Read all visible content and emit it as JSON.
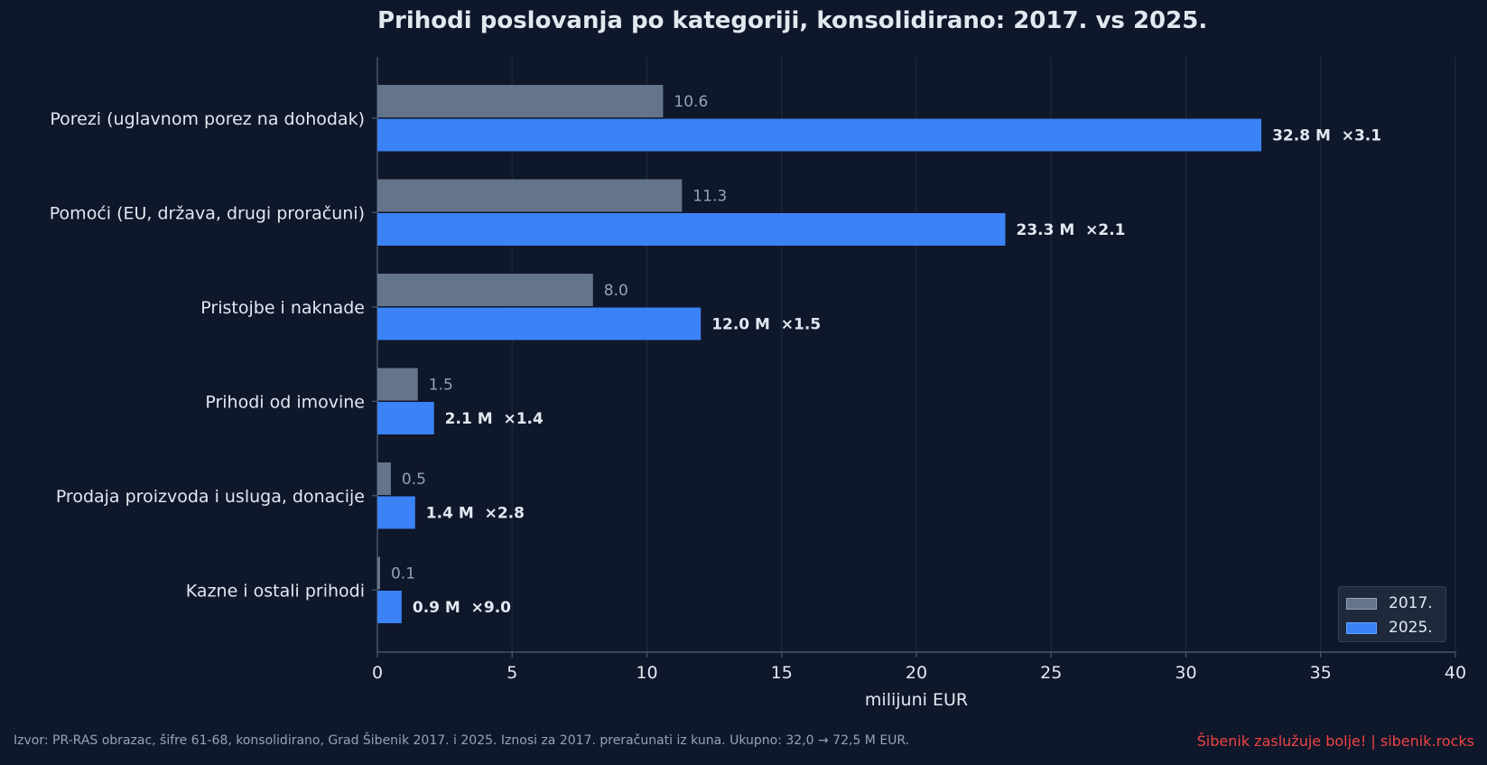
{
  "chart_data": {
    "type": "bar",
    "orientation": "horizontal",
    "title": "Prihodi poslovanja po kategoriji, konsolidirano: 2017. vs 2025.",
    "xlabel": "milijuni EUR",
    "ylabel": "",
    "xlim": [
      0,
      40
    ],
    "xticks": [
      "0",
      "5",
      "10",
      "15",
      "20",
      "25",
      "30",
      "35",
      "40"
    ],
    "grid": "vertical",
    "legend_position": "bottom-right",
    "categories": [
      "Porezi (uglavnom porez na dohodak)",
      "Pomoći (EU, država, drugi proračuni)",
      "Pristojbe i naknade",
      "Prihodi od imovine",
      "Prodaja proizvoda i usluga, donacije",
      "Kazne i ostali prihodi"
    ],
    "series": [
      {
        "name": "2017.",
        "color": "#64748b",
        "values": [
          10.6,
          11.3,
          8.0,
          1.5,
          0.5,
          0.1
        ],
        "labels": [
          "10.6",
          "11.3",
          "8.0",
          "1.5",
          "0.5",
          "0.1"
        ]
      },
      {
        "name": "2025.",
        "color": "#3b82f6",
        "values": [
          32.8,
          23.3,
          12.0,
          2.1,
          1.4,
          0.9
        ],
        "labels": [
          "32.8 M  ×3.1",
          "23.3 M  ×2.1",
          "12.0 M  ×1.5",
          "2.1 M  ×1.4",
          "1.4 M  ×2.8",
          "0.9 M  ×9.0"
        ]
      }
    ]
  },
  "footer": {
    "source": "Izvor: PR-RAS obrazac, šifre 61-68, konsolidirano, Grad Šibenik 2017. i 2025. Iznosi za 2017. preračunati iz kuna. Ukupno: 32,0 → 72,5 M EUR.",
    "brand": "Šibenik zaslužuje bolje!  |  sibenik.rocks"
  },
  "colors": {
    "background": "#0f172a",
    "grid": "#1e293b",
    "axis": "#475569",
    "text": "#e2e8f0",
    "muted_text": "#94a3b8",
    "brand": "#ef4444"
  }
}
